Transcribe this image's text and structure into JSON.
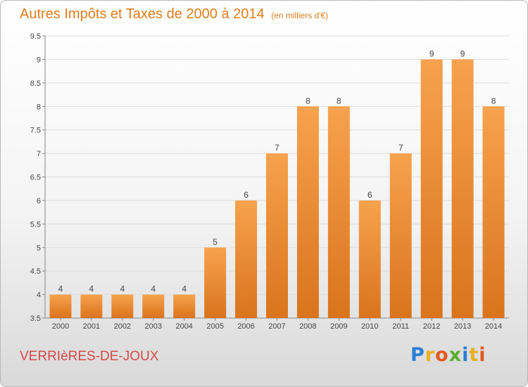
{
  "title": "Autres Impôts et Taxes de 2000 à 2014",
  "unit": "(en milliers d'€)",
  "commune": "VERRIèRES-DE-JOUX",
  "logo": {
    "text": "Proxiti",
    "letters": [
      {
        "char": "P",
        "color": "#2a7fd4"
      },
      {
        "char": "r",
        "color": "#e8b020"
      },
      {
        "char": "o",
        "color": "#e05a1c"
      },
      {
        "char": "x",
        "color": "#58b030"
      },
      {
        "char": "i",
        "color": "#2a7fd4"
      },
      {
        "char": "t",
        "color": "#e8b020"
      },
      {
        "char": "i",
        "color": "#e05a1c"
      }
    ]
  },
  "colors": {
    "title": "#e07d1c",
    "commune": "#d54848",
    "bar_light": "#f7a24e",
    "bar_dark": "#d9741c"
  },
  "chart_data": {
    "type": "bar",
    "categories": [
      "2000",
      "2001",
      "2002",
      "2003",
      "2004",
      "2005",
      "2006",
      "2007",
      "2008",
      "2009",
      "2010",
      "2011",
      "2012",
      "2013",
      "2014"
    ],
    "values": [
      4,
      4,
      4,
      4,
      4,
      5,
      6,
      7,
      8,
      8,
      6,
      7,
      9,
      9,
      8
    ],
    "value_labels": [
      "4",
      "4",
      "4",
      "4",
      "4",
      "5",
      "6",
      "7",
      "8",
      "8",
      "6",
      "7",
      "9",
      "9",
      "8"
    ],
    "ylim": [
      3.5,
      9.5
    ],
    "yticks": [
      "3.5",
      "4",
      "4.5",
      "5",
      "5.5",
      "6",
      "6.5",
      "7",
      "7.5",
      "8",
      "8.5",
      "9",
      "9.5"
    ],
    "grid": true,
    "xlabel": "",
    "ylabel": ""
  }
}
